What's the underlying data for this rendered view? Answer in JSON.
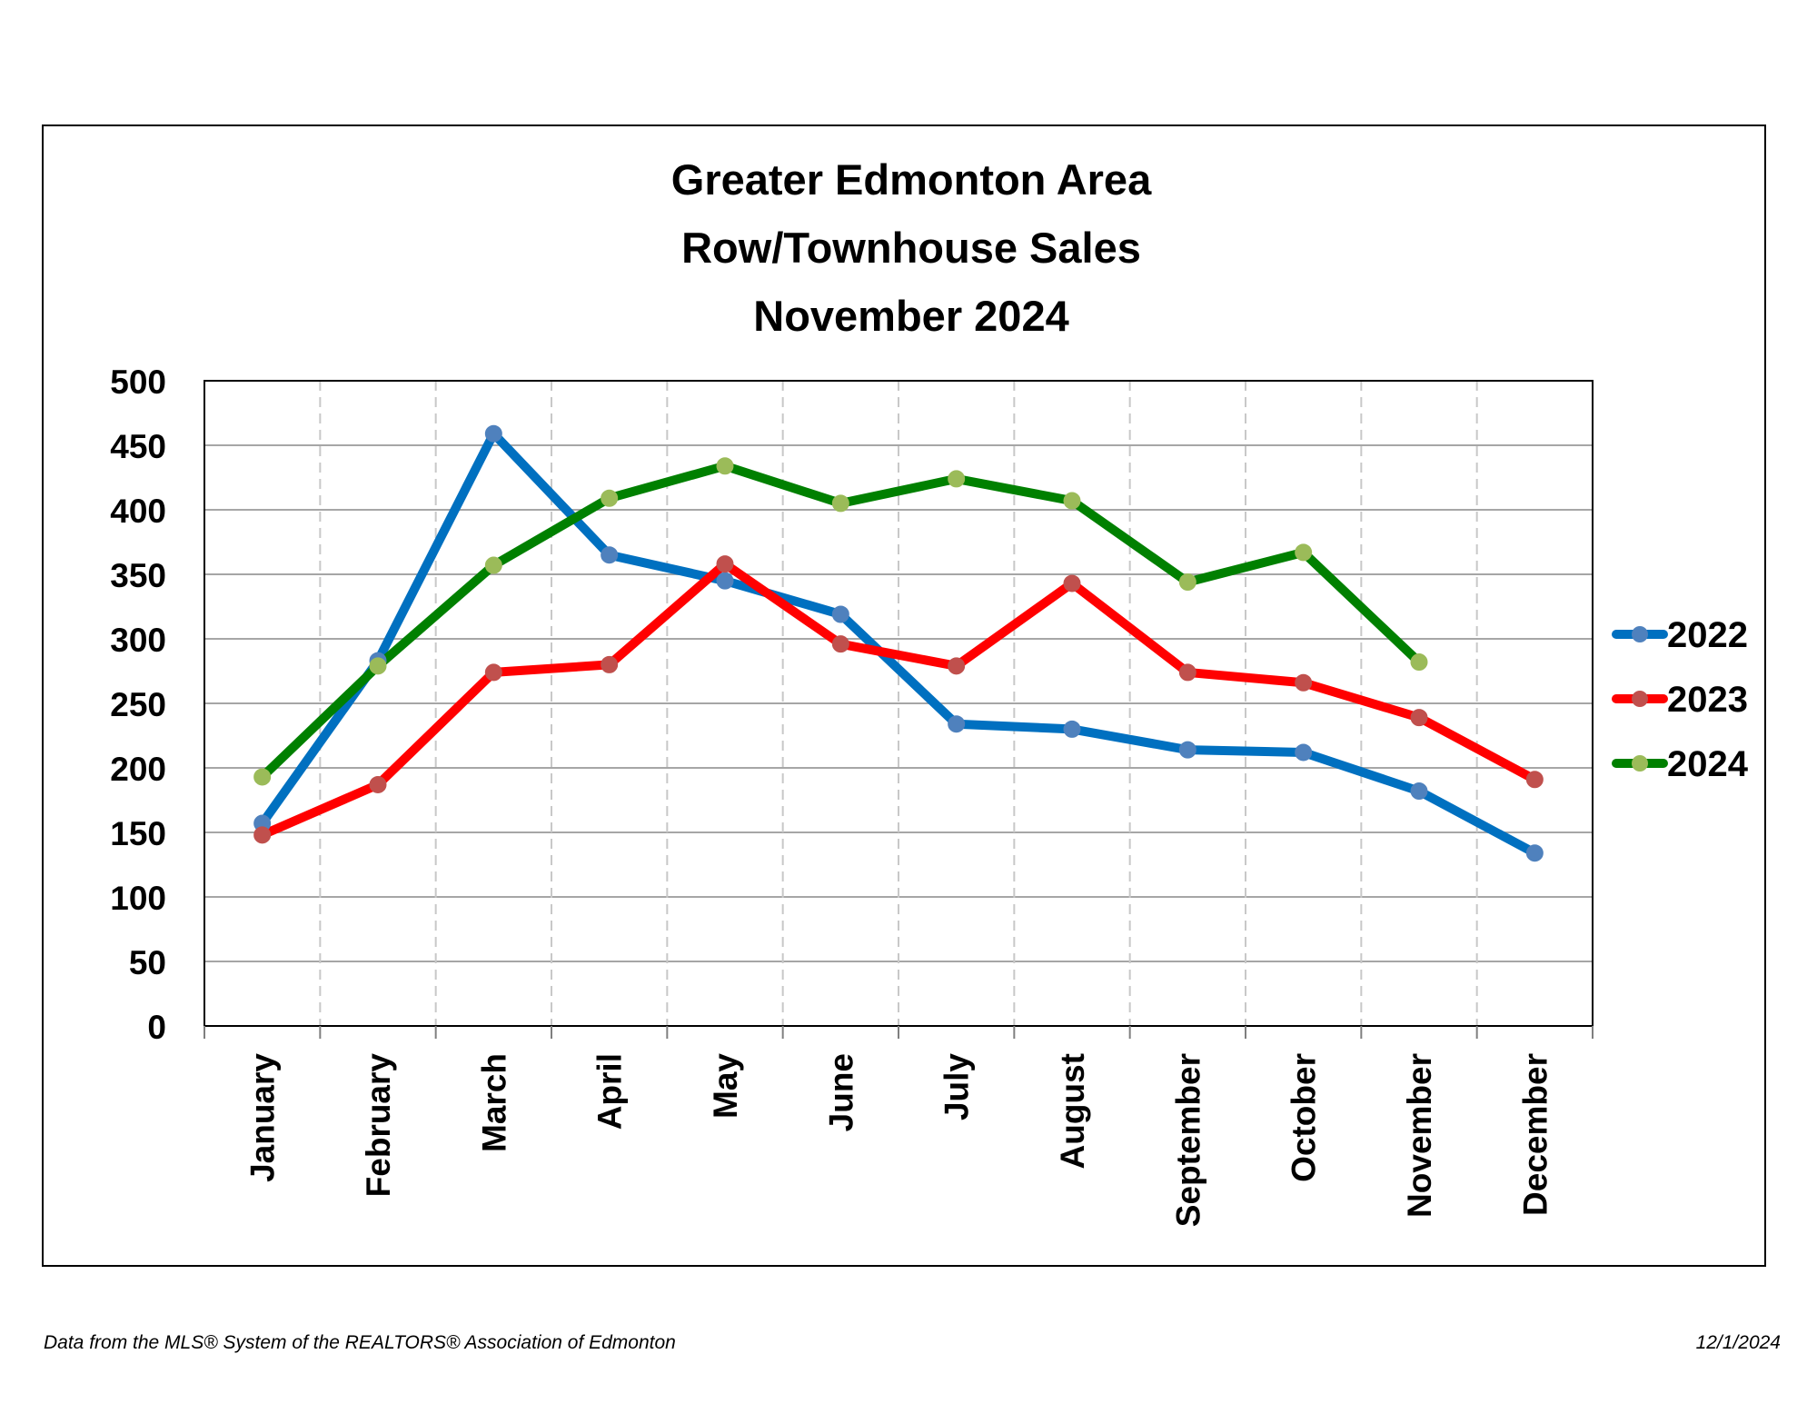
{
  "footer": {
    "source": "Data from the MLS® System of the REALTORS® Association of Edmonton",
    "date": "12/1/2024"
  },
  "chart_data": {
    "type": "line",
    "title_lines": [
      "Greater Edmonton Area",
      "Row/Townhouse Sales",
      "November 2024"
    ],
    "xlabel": "",
    "ylabel": "",
    "categories": [
      "January",
      "February",
      "March",
      "April",
      "May",
      "June",
      "July",
      "August",
      "September",
      "October",
      "November",
      "December"
    ],
    "ylim": [
      0,
      500
    ],
    "yticks": [
      0,
      50,
      100,
      150,
      200,
      250,
      300,
      350,
      400,
      450,
      500
    ],
    "grid": {
      "horizontal": true,
      "vertical": "dashed"
    },
    "legend_position": "right",
    "series": [
      {
        "name": "2022",
        "line_color": "#0070C0",
        "marker_color": "#4F81BD",
        "values": [
          157,
          283,
          459,
          365,
          345,
          319,
          234,
          230,
          214,
          212,
          182,
          134
        ]
      },
      {
        "name": "2023",
        "line_color": "#FF0000",
        "marker_color": "#C0504D",
        "values": [
          148,
          187,
          274,
          280,
          358,
          296,
          279,
          343,
          274,
          266,
          239,
          191
        ]
      },
      {
        "name": "2024",
        "line_color": "#008000",
        "marker_color": "#9BBB59",
        "values": [
          193,
          279,
          357,
          409,
          434,
          405,
          424,
          407,
          344,
          367,
          282,
          null
        ]
      }
    ]
  }
}
